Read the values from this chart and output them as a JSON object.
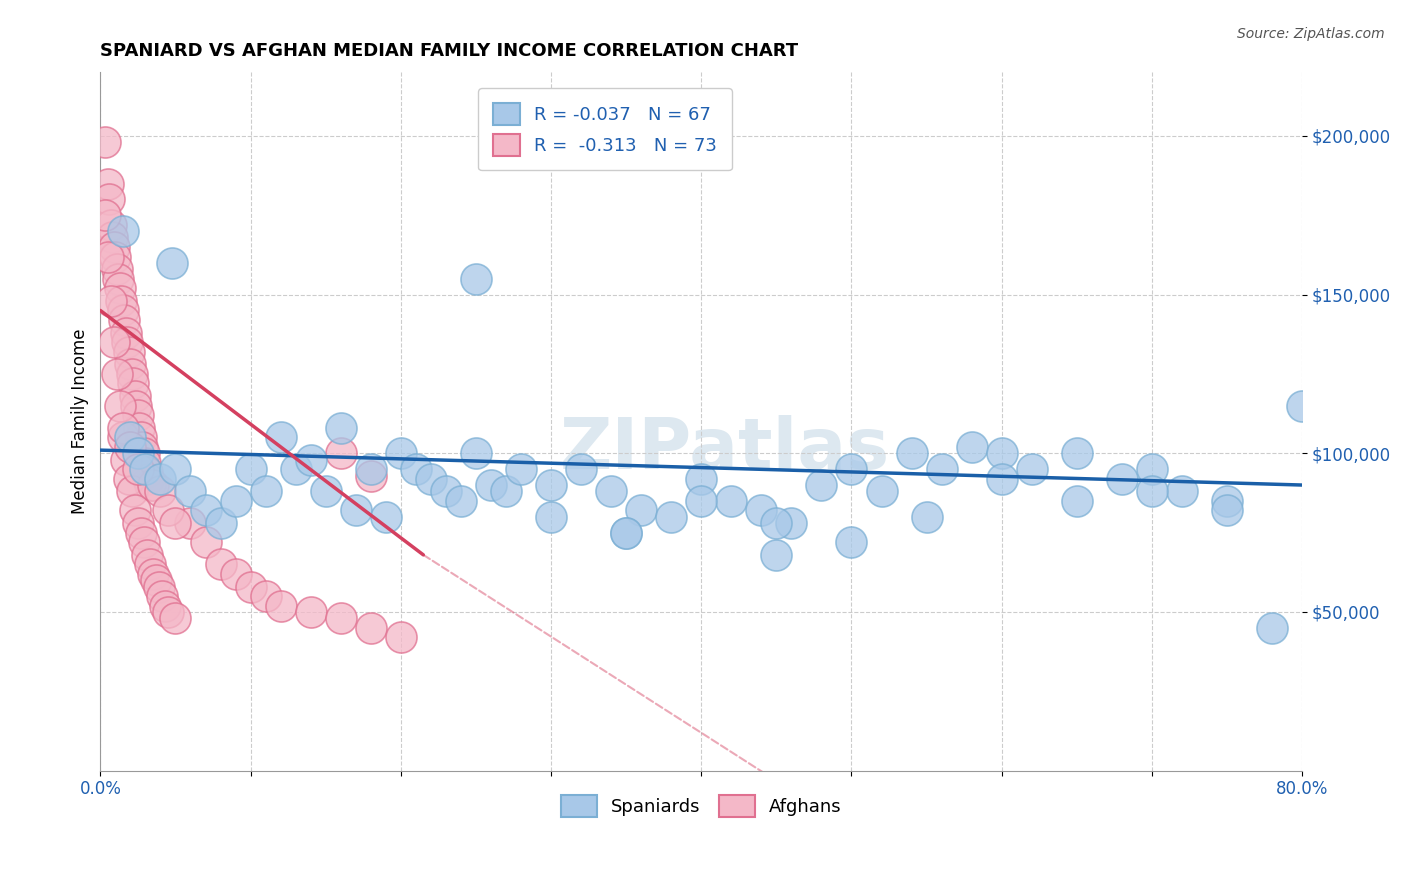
{
  "title": "SPANIARD VS AFGHAN MEDIAN FAMILY INCOME CORRELATION CHART",
  "source": "Source: ZipAtlas.com",
  "ylabel": "Median Family Income",
  "xlim": [
    0.0,
    0.8
  ],
  "ylim": [
    0,
    220000
  ],
  "yticks": [
    50000,
    100000,
    150000,
    200000
  ],
  "ytick_labels": [
    "$50,000",
    "$100,000",
    "$150,000",
    "$200,000"
  ],
  "xticks": [
    0.0,
    0.8
  ],
  "xtick_labels": [
    "0.0%",
    "80.0%"
  ],
  "spaniard_color": "#a8c8e8",
  "spaniard_edge": "#7bafd4",
  "afghan_color": "#f4b8c8",
  "afghan_edge": "#e07090",
  "spaniard_R": -0.037,
  "spaniard_N": 67,
  "afghan_R": -0.313,
  "afghan_N": 73,
  "legend_label_spaniard": "Spaniards",
  "legend_label_afghan": "Afghans",
  "watermark": "ZIPatlas",
  "blue_line": [
    [
      0.0,
      0.8
    ],
    [
      101000,
      90000
    ]
  ],
  "pink_line_solid": [
    [
      0.0,
      0.215
    ],
    [
      145000,
      68000
    ]
  ],
  "pink_line_dash": [
    [
      0.215,
      0.72
    ],
    [
      68000,
      -85000
    ]
  ],
  "spaniard_x": [
    0.015,
    0.048,
    0.02,
    0.025,
    0.03,
    0.04,
    0.05,
    0.06,
    0.07,
    0.08,
    0.09,
    0.1,
    0.11,
    0.12,
    0.13,
    0.14,
    0.15,
    0.16,
    0.17,
    0.18,
    0.19,
    0.2,
    0.21,
    0.22,
    0.23,
    0.24,
    0.25,
    0.26,
    0.27,
    0.28,
    0.3,
    0.32,
    0.34,
    0.36,
    0.38,
    0.4,
    0.42,
    0.44,
    0.46,
    0.48,
    0.5,
    0.52,
    0.54,
    0.56,
    0.58,
    0.6,
    0.62,
    0.65,
    0.68,
    0.7,
    0.72,
    0.75,
    0.78,
    0.3,
    0.35,
    0.4,
    0.45,
    0.5,
    0.55,
    0.6,
    0.65,
    0.7,
    0.75,
    0.8,
    0.25,
    0.35,
    0.45
  ],
  "spaniard_y": [
    170000,
    160000,
    105000,
    100000,
    95000,
    92000,
    95000,
    88000,
    82000,
    78000,
    85000,
    95000,
    88000,
    105000,
    95000,
    98000,
    88000,
    108000,
    82000,
    95000,
    80000,
    100000,
    95000,
    92000,
    88000,
    85000,
    100000,
    90000,
    88000,
    95000,
    90000,
    95000,
    88000,
    82000,
    80000,
    92000,
    85000,
    82000,
    78000,
    90000,
    95000,
    88000,
    100000,
    95000,
    102000,
    100000,
    95000,
    100000,
    92000,
    95000,
    88000,
    85000,
    45000,
    80000,
    75000,
    85000,
    78000,
    72000,
    80000,
    92000,
    85000,
    88000,
    82000,
    115000,
    155000,
    75000,
    68000
  ],
  "afghan_x": [
    0.003,
    0.005,
    0.006,
    0.007,
    0.008,
    0.009,
    0.01,
    0.011,
    0.012,
    0.013,
    0.014,
    0.015,
    0.016,
    0.017,
    0.018,
    0.019,
    0.02,
    0.021,
    0.022,
    0.023,
    0.024,
    0.025,
    0.026,
    0.027,
    0.028,
    0.029,
    0.03,
    0.031,
    0.032,
    0.033,
    0.003,
    0.005,
    0.007,
    0.009,
    0.011,
    0.013,
    0.015,
    0.017,
    0.019,
    0.021,
    0.023,
    0.025,
    0.027,
    0.029,
    0.031,
    0.033,
    0.035,
    0.037,
    0.039,
    0.041,
    0.043,
    0.045,
    0.05,
    0.06,
    0.07,
    0.08,
    0.09,
    0.1,
    0.11,
    0.12,
    0.14,
    0.16,
    0.18,
    0.2,
    0.16,
    0.18,
    0.035,
    0.04,
    0.045,
    0.05,
    0.015,
    0.02,
    0.025
  ],
  "afghan_y": [
    198000,
    185000,
    180000,
    172000,
    168000,
    165000,
    162000,
    158000,
    155000,
    152000,
    148000,
    145000,
    142000,
    138000,
    135000,
    132000,
    128000,
    125000,
    122000,
    118000,
    115000,
    112000,
    108000,
    105000,
    102000,
    100000,
    97000,
    94000,
    92000,
    90000,
    175000,
    162000,
    148000,
    135000,
    125000,
    115000,
    105000,
    98000,
    92000,
    88000,
    82000,
    78000,
    75000,
    72000,
    68000,
    65000,
    62000,
    60000,
    58000,
    55000,
    52000,
    50000,
    48000,
    78000,
    72000,
    65000,
    62000,
    58000,
    55000,
    52000,
    50000,
    48000,
    45000,
    42000,
    100000,
    93000,
    90000,
    88000,
    82000,
    78000,
    108000,
    102000,
    95000
  ]
}
